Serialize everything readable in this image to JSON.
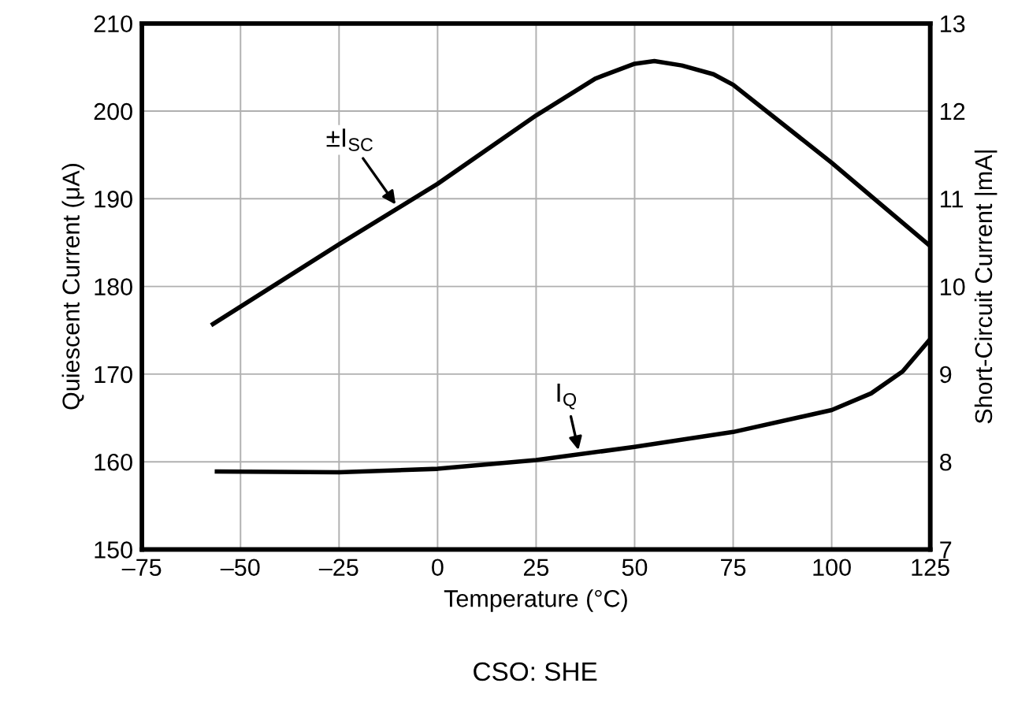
{
  "chart_data": {
    "type": "line",
    "xlabel": "Temperature (°C)",
    "ylabel": "Quiescent Current (μA)",
    "y2label": "Short-Circuit Current |mA|",
    "xlim": [
      -75,
      125
    ],
    "xticks": [
      {
        "value": -75,
        "label": "–75"
      },
      {
        "value": -50,
        "label": "–50"
      },
      {
        "value": -25,
        "label": "–25"
      },
      0,
      25,
      50,
      75,
      100,
      125
    ],
    "ylim": [
      150,
      210
    ],
    "yticks": [
      150,
      160,
      170,
      180,
      190,
      200,
      210
    ],
    "y2lim": [
      7,
      13
    ],
    "y2ticks": [
      7,
      8,
      9,
      10,
      11,
      12,
      13
    ],
    "grid": true,
    "line_style": "solid",
    "marker": "none",
    "series": [
      {
        "name": "±I$_{SC}$",
        "color": "#000000",
        "axis": "y2",
        "x": [
          -57,
          -25,
          0,
          25,
          40,
          50,
          55,
          62,
          70,
          75,
          100,
          125
        ],
        "values": [
          9.57,
          10.48,
          11.17,
          11.95,
          12.37,
          12.54,
          12.57,
          12.52,
          12.42,
          12.3,
          11.41,
          10.46
        ]
      },
      {
        "name": "I$_{Q}$",
        "color": "#000000",
        "axis": "y",
        "x": [
          -56,
          -25,
          0,
          25,
          50,
          75,
          100,
          110,
          118,
          125
        ],
        "values": [
          158.9,
          158.8,
          159.2,
          160.2,
          161.7,
          163.4,
          165.9,
          167.8,
          170.3,
          174.0
        ]
      }
    ],
    "annotations": [
      "CSO: SHE"
    ]
  }
}
